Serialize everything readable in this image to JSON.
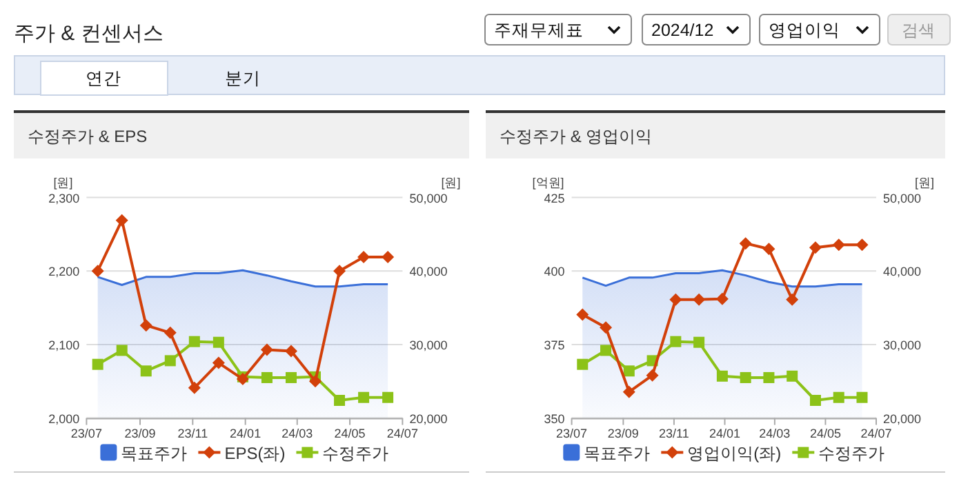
{
  "chart_data": [
    {
      "type": "other",
      "title": "주가 & 컨센서스",
      "annotations": [
        "주재무제표",
        "2024/12",
        "영업이익",
        "검색",
        "연간",
        "분기"
      ]
    },
    {
      "type": "line",
      "title": "수정주가 & EPS",
      "ylabel": "[원]",
      "y2label": "[원]",
      "grid": "y",
      "legend": "bottom",
      "x": [
        "2023-07-14",
        "2023-08-11",
        "2023-09-08",
        "2023-10-06",
        "2023-11-03",
        "2023-12-01",
        "2023-12-29",
        "2024-01-26",
        "2024-02-23",
        "2024-03-22",
        "2024-04-19",
        "2024-05-17",
        "2024-06-14"
      ],
      "xlim": [
        "2023-07-01",
        "2024-07-01"
      ],
      "xticks": [
        {
          "value": "2023-07-01",
          "label": "23/07"
        },
        {
          "value": "2023-09-01",
          "label": "23/09"
        },
        {
          "value": "2023-11-01",
          "label": "23/11"
        },
        {
          "value": "2024-01-01",
          "label": "24/01"
        },
        {
          "value": "2024-03-01",
          "label": "24/03"
        },
        {
          "value": "2024-05-01",
          "label": "24/05"
        },
        {
          "value": "2024-07-01",
          "label": "24/07"
        }
      ],
      "ylim": [
        2000,
        2300
      ],
      "yticks": [
        {
          "value": 2000,
          "label": "2,000"
        },
        {
          "value": 2100,
          "label": "2,100"
        },
        {
          "value": 2200,
          "label": "2,200"
        },
        {
          "value": 2300,
          "label": "2,300"
        }
      ],
      "y2lim": [
        20000,
        50000
      ],
      "y2ticks": [
        {
          "value": 20000,
          "label": "20,000"
        },
        {
          "value": 30000,
          "label": "30,000"
        },
        {
          "value": 40000,
          "label": "40,000"
        },
        {
          "value": 50000,
          "label": "50,000"
        }
      ],
      "series": [
        {
          "name": "목표주가",
          "type": "area",
          "axis": "y2",
          "marker": "none",
          "color": "#3a6fd8",
          "values": [
            39200,
            38100,
            39200,
            39200,
            39700,
            39700,
            40100,
            39400,
            38600,
            37900,
            37900,
            38200,
            38200
          ]
        },
        {
          "name": "EPS(좌)",
          "type": "line",
          "axis": "y",
          "marker": "diamond",
          "color": "#d2400a",
          "values": [
            2200,
            2269,
            2126,
            2116,
            2041,
            2075,
            2053,
            2093,
            2091,
            2050,
            2200,
            2219,
            2219
          ]
        },
        {
          "name": "수정주가",
          "type": "line",
          "axis": "y2",
          "marker": "square",
          "color": "#8cc218",
          "values": [
            27300,
            29200,
            26400,
            27800,
            30400,
            30300,
            25600,
            25500,
            25500,
            25600,
            22400,
            22800,
            22800
          ]
        }
      ]
    },
    {
      "type": "line",
      "title": "수정주가 & 영업이익",
      "ylabel": "[억원]",
      "y2label": "[원]",
      "grid": "y",
      "legend": "bottom",
      "x": [
        "2023-07-14",
        "2023-08-11",
        "2023-09-08",
        "2023-10-06",
        "2023-11-03",
        "2023-12-01",
        "2023-12-29",
        "2024-01-26",
        "2024-02-23",
        "2024-03-22",
        "2024-04-19",
        "2024-05-17",
        "2024-06-14"
      ],
      "xlim": [
        "2023-07-01",
        "2024-07-01"
      ],
      "xticks": [
        {
          "value": "2023-07-01",
          "label": "23/07"
        },
        {
          "value": "2023-09-01",
          "label": "23/09"
        },
        {
          "value": "2023-11-01",
          "label": "23/11"
        },
        {
          "value": "2024-01-01",
          "label": "24/01"
        },
        {
          "value": "2024-03-01",
          "label": "24/03"
        },
        {
          "value": "2024-05-01",
          "label": "24/05"
        },
        {
          "value": "2024-07-01",
          "label": "24/07"
        }
      ],
      "ylim": [
        350,
        425
      ],
      "yticks": [
        350,
        375,
        400,
        425
      ],
      "y2lim": [
        20000,
        50000
      ],
      "y2ticks": [
        {
          "value": 20000,
          "label": "20,000"
        },
        {
          "value": 30000,
          "label": "30,000"
        },
        {
          "value": 40000,
          "label": "40,000"
        },
        {
          "value": 50000,
          "label": "50,000"
        }
      ],
      "series": [
        {
          "name": "목표주가",
          "type": "area",
          "axis": "y2",
          "marker": "none",
          "color": "#3a6fd8",
          "values": [
            39100,
            38000,
            39100,
            39100,
            39700,
            39700,
            40100,
            39400,
            38500,
            37900,
            37900,
            38200,
            38200
          ]
        },
        {
          "name": "영업이익(좌)",
          "type": "line",
          "axis": "y",
          "marker": "diamond",
          "color": "#d2400a",
          "values": [
            385.2,
            380.8,
            358.9,
            364.5,
            390.3,
            390.3,
            390.5,
            409.4,
            407.5,
            390.3,
            408.0,
            408.9,
            408.9
          ]
        },
        {
          "name": "수정주가",
          "type": "line",
          "axis": "y2",
          "marker": "square",
          "color": "#8cc218",
          "values": [
            27300,
            29200,
            26400,
            27800,
            30400,
            30300,
            25700,
            25500,
            25500,
            25700,
            22400,
            22800,
            22800
          ]
        }
      ]
    }
  ]
}
